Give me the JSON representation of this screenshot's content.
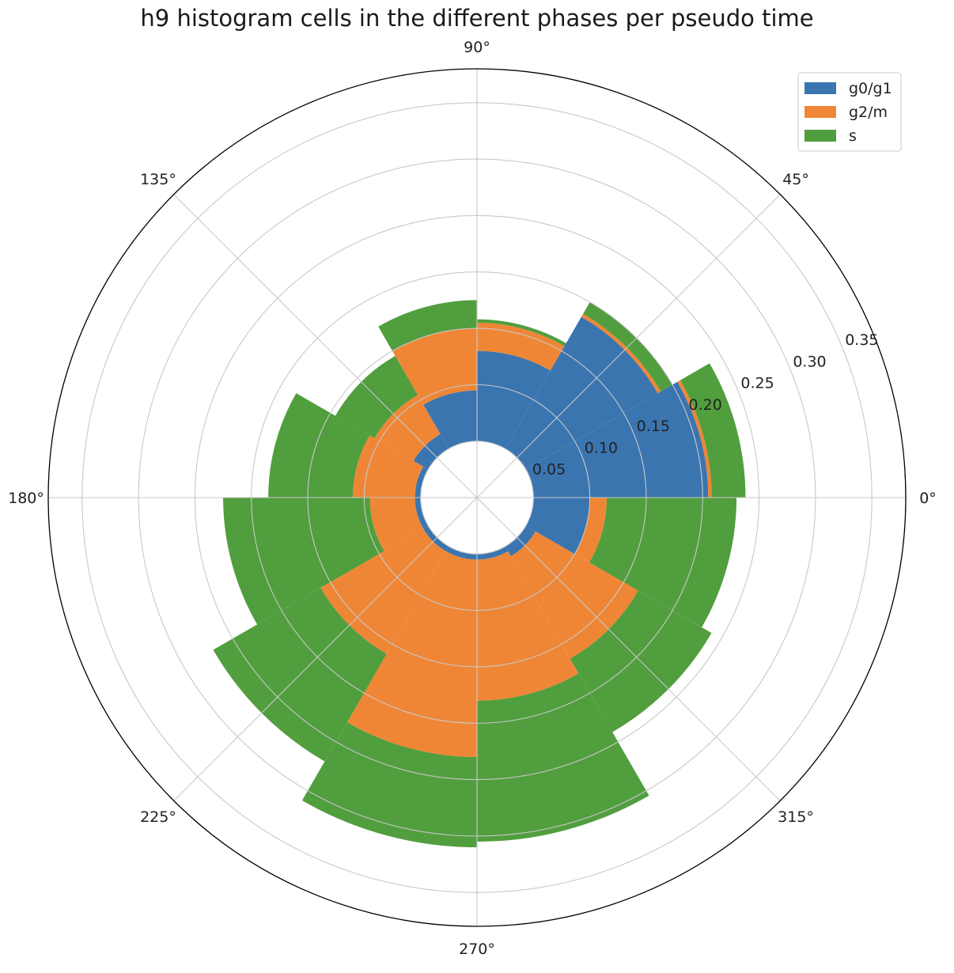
{
  "chart_data": {
    "type": "polar-stacked-bar",
    "title": "h9 histogram cells in the different phases per pseudo time",
    "bin_width_deg": 30,
    "bin_centers_deg": [
      15,
      45,
      75,
      105,
      135,
      165,
      195,
      225,
      255,
      285,
      315,
      345
    ],
    "base_offset": 0.05,
    "rlim": [
      0,
      0.38
    ],
    "r_ticks": [
      0.05,
      0.1,
      0.15,
      0.2,
      0.25,
      0.3,
      0.35
    ],
    "r_tick_labels": [
      "0.05",
      "0.10",
      "0.15",
      "0.20",
      "0.25",
      "0.30",
      "0.35"
    ],
    "r_label_angle_deg": 22.5,
    "theta_ticks_deg": [
      0,
      45,
      90,
      135,
      180,
      225,
      270,
      315
    ],
    "theta_tick_labels": [
      "0°",
      "45°",
      "90°",
      "135°",
      "180°",
      "225°",
      "270°",
      "315°"
    ],
    "grid": true,
    "legend_position": "top-right",
    "colors": {
      "g0/g1": "#3a75b0",
      "g2/m": "#ef8636",
      "s": "#519e3e"
    },
    "series": [
      {
        "name": "g0/g1",
        "values": [
          0.155,
          0.135,
          0.08,
          0.045,
          0.015,
          0.005,
          0.005,
          0.005,
          0.005,
          0.005,
          0.01,
          0.05
        ]
      },
      {
        "name": "g2/m",
        "values": [
          0.003,
          0.003,
          0.025,
          0.055,
          0.04,
          0.055,
          0.04,
          0.105,
          0.175,
          0.125,
          0.105,
          0.015
        ]
      },
      {
        "name": "s",
        "values": [
          0.03,
          0.012,
          0.003,
          0.025,
          0.04,
          0.075,
          0.13,
          0.11,
          0.08,
          0.125,
          0.075,
          0.115
        ]
      }
    ],
    "legend": [
      {
        "label": "g0/g1",
        "color": "#3a75b0"
      },
      {
        "label": "g2/m",
        "color": "#ef8636"
      },
      {
        "label": "s",
        "color": "#519e3e"
      }
    ]
  }
}
